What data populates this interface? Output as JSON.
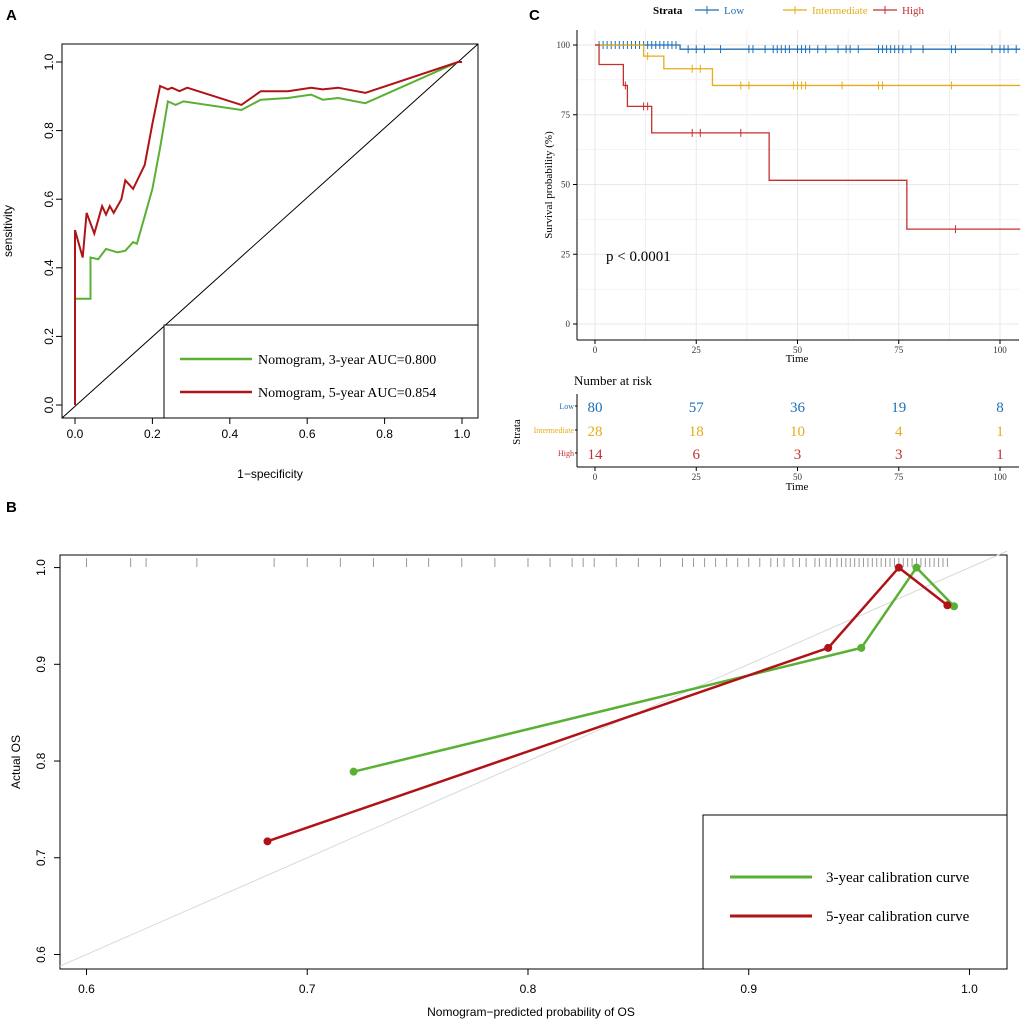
{
  "colors": {
    "green": "#5ab034",
    "red": "#b01317",
    "blue": "#1f6fb5",
    "gold": "#e6ac17",
    "km_red": "#c3312f",
    "grid": "#e8e8e8",
    "diag": "#d9d9d9"
  },
  "chart_data": [
    {
      "panel": "A",
      "type": "line",
      "title": "",
      "xlabel": "1−specificity",
      "ylabel": "sensitivity",
      "xlim": [
        0,
        1
      ],
      "ylim": [
        0,
        1
      ],
      "xticks": [
        "0.0",
        "0.2",
        "0.4",
        "0.6",
        "0.8",
        "1.0"
      ],
      "yticks": [
        "0.0",
        "0.2",
        "0.4",
        "0.6",
        "0.8",
        "1.0"
      ],
      "legend": [
        "Nomogram, 3-year AUC=0.800",
        "Nomogram, 5-year AUC=0.854"
      ],
      "series": [
        {
          "name": "Nomogram, 3-year AUC=0.800",
          "points": [
            [
              0,
              0
            ],
            [
              0,
              0.26
            ],
            [
              0,
              0.31
            ],
            [
              0.04,
              0.31
            ],
            [
              0.04,
              0.43
            ],
            [
              0.06,
              0.425
            ],
            [
              0.08,
              0.455
            ],
            [
              0.11,
              0.445
            ],
            [
              0.13,
              0.45
            ],
            [
              0.15,
              0.475
            ],
            [
              0.16,
              0.47
            ],
            [
              0.18,
              0.55
            ],
            [
              0.2,
              0.63
            ],
            [
              0.22,
              0.75
            ],
            [
              0.24,
              0.885
            ],
            [
              0.26,
              0.875
            ],
            [
              0.28,
              0.885
            ],
            [
              0.43,
              0.86
            ],
            [
              0.48,
              0.89
            ],
            [
              0.55,
              0.895
            ],
            [
              0.61,
              0.905
            ],
            [
              0.64,
              0.89
            ],
            [
              0.68,
              0.895
            ],
            [
              0.75,
              0.88
            ],
            [
              0.99,
              1
            ],
            [
              1,
              1
            ]
          ]
        },
        {
          "name": "Nomogram, 5-year AUC=0.854",
          "points": [
            [
              0,
              0
            ],
            [
              0,
              0.26
            ],
            [
              0,
              0.51
            ],
            [
              0.02,
              0.43
            ],
            [
              0.03,
              0.56
            ],
            [
              0.05,
              0.5
            ],
            [
              0.07,
              0.58
            ],
            [
              0.08,
              0.555
            ],
            [
              0.09,
              0.58
            ],
            [
              0.1,
              0.56
            ],
            [
              0.12,
              0.6
            ],
            [
              0.13,
              0.655
            ],
            [
              0.15,
              0.63
            ],
            [
              0.18,
              0.7
            ],
            [
              0.2,
              0.82
            ],
            [
              0.22,
              0.93
            ],
            [
              0.24,
              0.92
            ],
            [
              0.25,
              0.925
            ],
            [
              0.27,
              0.915
            ],
            [
              0.29,
              0.925
            ],
            [
              0.43,
              0.875
            ],
            [
              0.48,
              0.915
            ],
            [
              0.55,
              0.915
            ],
            [
              0.61,
              0.925
            ],
            [
              0.64,
              0.92
            ],
            [
              0.68,
              0.925
            ],
            [
              0.75,
              0.91
            ],
            [
              0.99,
              1
            ],
            [
              1,
              1
            ]
          ]
        }
      ]
    },
    {
      "panel": "C",
      "type": "line",
      "title": "",
      "xlabel": "Time",
      "ylabel": "Survival probability (%)",
      "xlim": [
        0,
        105
      ],
      "ylim": [
        0,
        100
      ],
      "xticks": [
        "0",
        "25",
        "50",
        "75",
        "100"
      ],
      "yticks": [
        "0",
        "25",
        "50",
        "75",
        "100"
      ],
      "legend_title": "Strata",
      "legend": [
        "Low",
        "Intermediate",
        "High"
      ],
      "annotation": "p < 0.0001",
      "series": [
        {
          "name": "Low",
          "steps": [
            [
              0,
              100
            ],
            [
              21,
              98.5
            ],
            [
              105,
              98.5
            ]
          ],
          "censor": [
            1,
            2,
            3,
            4,
            5,
            6,
            7,
            8,
            9,
            10,
            11,
            12,
            13,
            14,
            15,
            16,
            17,
            18,
            19,
            20,
            23,
            25,
            27,
            31,
            38,
            39,
            42,
            44,
            45,
            46,
            47,
            48,
            50,
            51,
            52,
            53,
            55,
            57,
            60,
            62,
            63,
            65,
            70,
            71,
            72,
            73,
            74,
            75,
            76,
            78,
            81,
            88,
            89,
            98,
            100,
            101,
            102,
            104
          ]
        },
        {
          "name": "Intermediate",
          "steps": [
            [
              0,
              100
            ],
            [
              12,
              96
            ],
            [
              17,
              91.5
            ],
            [
              29,
              85.5
            ],
            [
              105,
              85.5
            ]
          ],
          "censor": [
            13,
            24,
            26,
            36,
            38,
            49,
            50,
            51,
            52,
            61,
            70,
            71,
            88
          ]
        },
        {
          "name": "High",
          "steps": [
            [
              0,
              100
            ],
            [
              1,
              93
            ],
            [
              7,
              85.5
            ],
            [
              8,
              78
            ],
            [
              14,
              68.5
            ],
            [
              43,
              51.5
            ],
            [
              77,
              34
            ],
            [
              105,
              34
            ]
          ],
          "censor": [
            7.5,
            12,
            13,
            24,
            26,
            36,
            89
          ]
        }
      ]
    },
    {
      "panel": "C-risk",
      "type": "table",
      "title": "Number at risk",
      "xlabel": "Time",
      "ylabel": "Strata",
      "xticks": [
        "0",
        "25",
        "50",
        "75",
        "100"
      ],
      "rows": [
        {
          "name": "Low",
          "values": [
            "80",
            "57",
            "36",
            "19",
            "8"
          ]
        },
        {
          "name": "Intermediate",
          "values": [
            "28",
            "18",
            "10",
            "4",
            "1"
          ]
        },
        {
          "name": "High",
          "values": [
            "14",
            "6",
            "3",
            "3",
            "1"
          ]
        }
      ]
    },
    {
      "panel": "B",
      "type": "line",
      "title": "",
      "xlabel": "Nomogram−predicted probability of OS",
      "ylabel": "Actual OS",
      "xlim": [
        0.588,
        1.017
      ],
      "ylim": [
        0.585,
        1.013
      ],
      "xticks": [
        "0.6",
        "0.7",
        "0.8",
        "0.9",
        "1.0"
      ],
      "yticks": [
        "0.6",
        "0.7",
        "0.8",
        "0.9",
        "1.0"
      ],
      "legend": [
        "3-year calibration curve",
        "5-year calibration curve"
      ],
      "series": [
        {
          "name": "3-year calibration curve",
          "points": [
            [
              0.721,
              0.789
            ],
            [
              0.951,
              0.917
            ],
            [
              0.976,
              1.0
            ],
            [
              0.993,
              0.96
            ]
          ]
        },
        {
          "name": "5-year calibration curve",
          "points": [
            [
              0.682,
              0.717
            ],
            [
              0.936,
              0.917
            ],
            [
              0.968,
              1.0
            ],
            [
              0.99,
              0.961
            ]
          ]
        }
      ],
      "rug": [
        0.6,
        0.62,
        0.627,
        0.65,
        0.685,
        0.7,
        0.715,
        0.73,
        0.745,
        0.755,
        0.77,
        0.785,
        0.8,
        0.81,
        0.82,
        0.825,
        0.83,
        0.84,
        0.85,
        0.86,
        0.87,
        0.875,
        0.88,
        0.885,
        0.89,
        0.895,
        0.9,
        0.905,
        0.91,
        0.913,
        0.916,
        0.92,
        0.923,
        0.926,
        0.93,
        0.932,
        0.935,
        0.937,
        0.94,
        0.942,
        0.944,
        0.946,
        0.948,
        0.95,
        0.952,
        0.954,
        0.956,
        0.958,
        0.96,
        0.962,
        0.964,
        0.966,
        0.968,
        0.97,
        0.972,
        0.974,
        0.976,
        0.978,
        0.98,
        0.982,
        0.984,
        0.986,
        0.988,
        0.99
      ]
    }
  ]
}
